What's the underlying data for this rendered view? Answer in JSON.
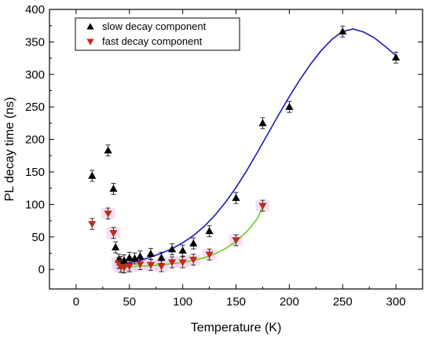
{
  "chart_data": {
    "type": "scatter",
    "title": "",
    "xlabel": "Temperature (K)",
    "ylabel": "PL decay time (ns)",
    "xlim": [
      -25,
      325
    ],
    "ylim": [
      -30,
      400
    ],
    "x_ticks": [
      0,
      50,
      100,
      150,
      200,
      250,
      300
    ],
    "x_tick_labels": [
      "0",
      "50",
      "100",
      "150",
      "200",
      "250",
      "300"
    ],
    "y_ticks": [
      0,
      50,
      100,
      150,
      200,
      250,
      300,
      350,
      400
    ],
    "y_tick_labels": [
      "0",
      "50",
      "100",
      "150",
      "200",
      "250",
      "300",
      "350",
      "400"
    ],
    "grid": false,
    "legend_position": "top-left",
    "series": [
      {
        "name": "slow decay component",
        "marker": "triangle-up",
        "color": "#000000",
        "points": [
          {
            "x": 15,
            "y": 144
          },
          {
            "x": 30,
            "y": 183
          },
          {
            "x": 35,
            "y": 124
          },
          {
            "x": 37,
            "y": 34
          },
          {
            "x": 40,
            "y": 15
          },
          {
            "x": 42,
            "y": 12
          },
          {
            "x": 45,
            "y": 14
          },
          {
            "x": 50,
            "y": 18
          },
          {
            "x": 55,
            "y": 17
          },
          {
            "x": 60,
            "y": 20
          },
          {
            "x": 70,
            "y": 24
          },
          {
            "x": 80,
            "y": 18
          },
          {
            "x": 90,
            "y": 31
          },
          {
            "x": 100,
            "y": 29
          },
          {
            "x": 110,
            "y": 40
          },
          {
            "x": 125,
            "y": 59
          },
          {
            "x": 150,
            "y": 110
          },
          {
            "x": 175,
            "y": 225
          },
          {
            "x": 200,
            "y": 250
          },
          {
            "x": 250,
            "y": 366
          },
          {
            "x": 300,
            "y": 326
          }
        ]
      },
      {
        "name": "fast decay component",
        "marker": "triangle-down",
        "color": "#d42020",
        "points": [
          {
            "x": 15,
            "y": 70
          },
          {
            "x": 30,
            "y": 86
          },
          {
            "x": 35,
            "y": 56
          },
          {
            "x": 40,
            "y": 10
          },
          {
            "x": 42,
            "y": 4
          },
          {
            "x": 45,
            "y": 3
          },
          {
            "x": 50,
            "y": 5
          },
          {
            "x": 60,
            "y": 8
          },
          {
            "x": 70,
            "y": 7
          },
          {
            "x": 80,
            "y": 5
          },
          {
            "x": 90,
            "y": 11
          },
          {
            "x": 100,
            "y": 11
          },
          {
            "x": 110,
            "y": 15
          },
          {
            "x": 125,
            "y": 23
          },
          {
            "x": 150,
            "y": 45
          },
          {
            "x": 175,
            "y": 98
          }
        ]
      }
    ],
    "fit_curves": [
      {
        "color": "#1a1ab4",
        "points": [
          {
            "x": 42,
            "y": 8
          },
          {
            "x": 50,
            "y": 10
          },
          {
            "x": 60,
            "y": 14
          },
          {
            "x": 70,
            "y": 19
          },
          {
            "x": 80,
            "y": 25
          },
          {
            "x": 90,
            "y": 32
          },
          {
            "x": 100,
            "y": 41
          },
          {
            "x": 110,
            "y": 52
          },
          {
            "x": 120,
            "y": 66
          },
          {
            "x": 130,
            "y": 83
          },
          {
            "x": 140,
            "y": 103
          },
          {
            "x": 150,
            "y": 126
          },
          {
            "x": 160,
            "y": 152
          },
          {
            "x": 170,
            "y": 180
          },
          {
            "x": 180,
            "y": 209
          },
          {
            "x": 190,
            "y": 238
          },
          {
            "x": 200,
            "y": 266
          },
          {
            "x": 210,
            "y": 292
          },
          {
            "x": 220,
            "y": 316
          },
          {
            "x": 230,
            "y": 337
          },
          {
            "x": 240,
            "y": 354
          },
          {
            "x": 250,
            "y": 366
          },
          {
            "x": 260,
            "y": 370
          },
          {
            "x": 270,
            "y": 365
          },
          {
            "x": 280,
            "y": 356
          },
          {
            "x": 290,
            "y": 343
          },
          {
            "x": 300,
            "y": 329
          }
        ]
      },
      {
        "color": "#6ecb1e",
        "points": [
          {
            "x": 42,
            "y": 3
          },
          {
            "x": 50,
            "y": 4
          },
          {
            "x": 60,
            "y": 5
          },
          {
            "x": 70,
            "y": 6
          },
          {
            "x": 80,
            "y": 7
          },
          {
            "x": 90,
            "y": 9
          },
          {
            "x": 100,
            "y": 11
          },
          {
            "x": 110,
            "y": 14
          },
          {
            "x": 120,
            "y": 18
          },
          {
            "x": 130,
            "y": 24
          },
          {
            "x": 140,
            "y": 32
          },
          {
            "x": 150,
            "y": 43
          },
          {
            "x": 160,
            "y": 58
          },
          {
            "x": 170,
            "y": 78
          },
          {
            "x": 175,
            "y": 97
          }
        ]
      }
    ]
  },
  "colors": {
    "slow": "#000000",
    "fast": "#d42020",
    "fit_slow": "#1a1ab4",
    "fit_fast": "#6ecb1e",
    "highlight": "#f4c2ec"
  }
}
